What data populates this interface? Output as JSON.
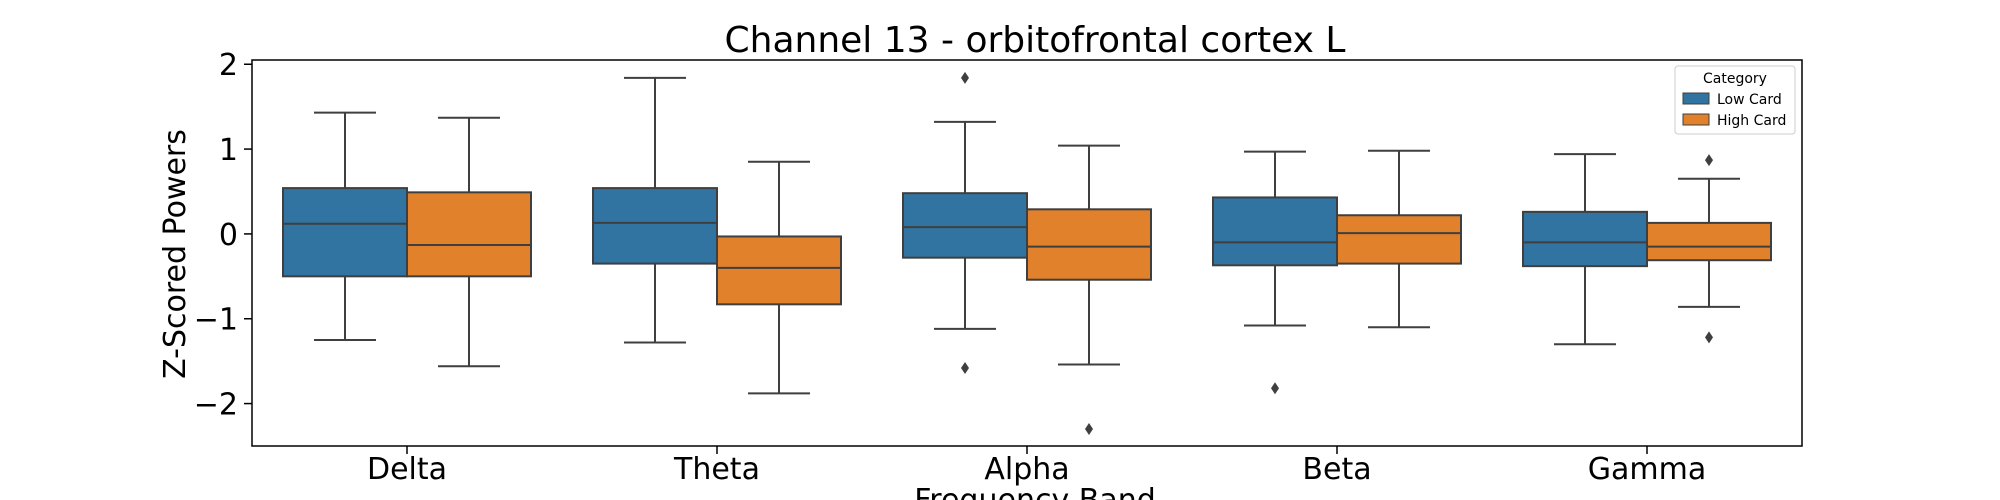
{
  "chart_data": {
    "type": "box",
    "title": "Channel 13 - orbitofrontal cortex L",
    "xlabel": "Frequency Band",
    "ylabel": "Z-Scored Powers",
    "ylim": [
      -2.5,
      2.05
    ],
    "yticks": [
      -2,
      -1,
      0,
      1,
      2
    ],
    "ytick_labels": [
      "−2",
      "−1",
      "0",
      "1",
      "2"
    ],
    "categories": [
      "Delta",
      "Theta",
      "Alpha",
      "Beta",
      "Gamma"
    ],
    "legend": {
      "title": "Category",
      "position": "top-right"
    },
    "grid": false,
    "series": [
      {
        "name": "Low Card",
        "color": "#3274a1",
        "boxes": [
          {
            "whisker_low": -1.25,
            "q1": -0.5,
            "median": 0.12,
            "q3": 0.54,
            "whisker_high": 1.43,
            "outliers": []
          },
          {
            "whisker_low": -1.28,
            "q1": -0.35,
            "median": 0.13,
            "q3": 0.54,
            "whisker_high": 1.84,
            "outliers": []
          },
          {
            "whisker_low": -1.12,
            "q1": -0.28,
            "median": 0.08,
            "q3": 0.48,
            "whisker_high": 1.32,
            "outliers": [
              1.84,
              -1.58
            ]
          },
          {
            "whisker_low": -1.08,
            "q1": -0.37,
            "median": -0.1,
            "q3": 0.43,
            "whisker_high": 0.97,
            "outliers": [
              -1.82
            ]
          },
          {
            "whisker_low": -1.3,
            "q1": -0.38,
            "median": -0.1,
            "q3": 0.26,
            "whisker_high": 0.94,
            "outliers": []
          }
        ]
      },
      {
        "name": "High Card",
        "color": "#e1812c",
        "boxes": [
          {
            "whisker_low": -1.56,
            "q1": -0.5,
            "median": -0.13,
            "q3": 0.49,
            "whisker_high": 1.37,
            "outliers": []
          },
          {
            "whisker_low": -1.88,
            "q1": -0.83,
            "median": -0.4,
            "q3": -0.03,
            "whisker_high": 0.85,
            "outliers": []
          },
          {
            "whisker_low": -1.54,
            "q1": -0.54,
            "median": -0.15,
            "q3": 0.29,
            "whisker_high": 1.04,
            "outliers": [
              -2.3
            ]
          },
          {
            "whisker_low": -1.1,
            "q1": -0.35,
            "median": 0.01,
            "q3": 0.22,
            "whisker_high": 0.98,
            "outliers": []
          },
          {
            "whisker_low": -0.86,
            "q1": -0.31,
            "median": -0.15,
            "q3": 0.13,
            "whisker_high": 0.65,
            "outliers": [
              0.87,
              -1.22
            ]
          }
        ]
      }
    ]
  }
}
